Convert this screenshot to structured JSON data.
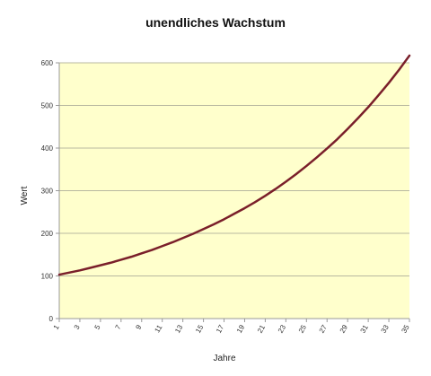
{
  "chart_data": {
    "type": "line",
    "title": "unendliches Wachstum",
    "xlabel": "Jahre",
    "ylabel": "Wert",
    "ylim": [
      0,
      600
    ],
    "yticks": [
      "0",
      "100",
      "200",
      "300",
      "400",
      "500",
      "600"
    ],
    "xticks": [
      "1",
      "3",
      "5",
      "7",
      "9",
      "11",
      "13",
      "15",
      "17",
      "19",
      "21",
      "23",
      "25",
      "27",
      "29",
      "31",
      "33",
      "35"
    ],
    "x": [
      1,
      2,
      3,
      4,
      5,
      6,
      7,
      8,
      9,
      10,
      11,
      12,
      13,
      14,
      15,
      16,
      17,
      18,
      19,
      20,
      21,
      22,
      23,
      24,
      25,
      26,
      27,
      28,
      29,
      30,
      31,
      32,
      33,
      34,
      35
    ],
    "series": [
      {
        "values": [
          103,
          108,
          113,
          119,
          125,
          131,
          138,
          145,
          153,
          161,
          170,
          179,
          189,
          199,
          210,
          221,
          233,
          246,
          259,
          273,
          288,
          304,
          321,
          339,
          358,
          378,
          399,
          421,
          445,
          470,
          496,
          524,
          553,
          584,
          617
        ]
      }
    ],
    "grid": true,
    "colors": {
      "plot_background": "#ffffcc",
      "line": "#7a1f2a",
      "grid": "#b8b8a0",
      "axis": "#999999"
    }
  }
}
